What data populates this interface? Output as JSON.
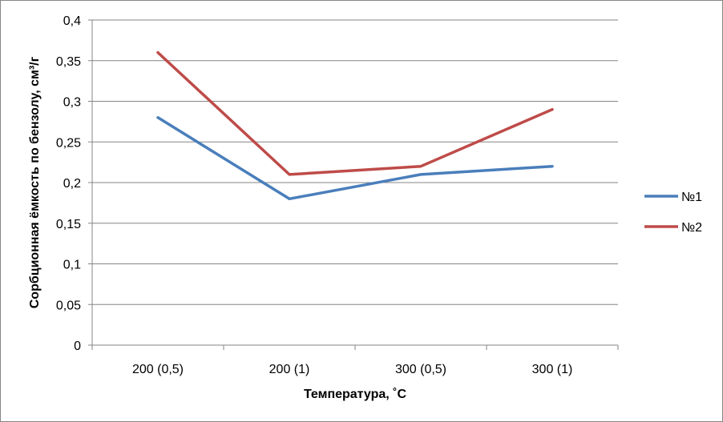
{
  "chart_data": {
    "type": "line",
    "categories": [
      "200 (0,5)",
      "200 (1)",
      "300 (0,5)",
      "300 (1)"
    ],
    "series": [
      {
        "name": "№1",
        "values": [
          0.28,
          0.18,
          0.21,
          0.22
        ],
        "color": "#4a7ebb"
      },
      {
        "name": "№2",
        "values": [
          0.36,
          0.21,
          0.22,
          0.29
        ],
        "color": "#be4b48"
      }
    ],
    "title": "",
    "xlabel": "Температура, ˚С",
    "ylabel": "Сорбционная ёмкость по бензолу, см³/г",
    "ylim": [
      0,
      0.4
    ],
    "yticks": [
      "0",
      "0,05",
      "0,1",
      "0,15",
      "0,2",
      "0,25",
      "0,3",
      "0,35",
      "0,4"
    ],
    "grid": true,
    "legend": "right"
  }
}
